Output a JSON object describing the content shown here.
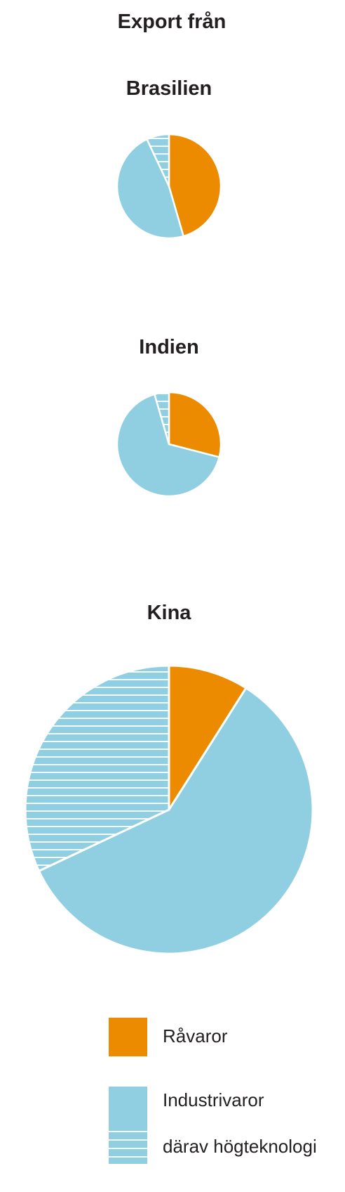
{
  "title": "Export från",
  "colors": {
    "ravaror": "#ec8a00",
    "industri": "#90cfe1",
    "hatch_line": "#ffffff",
    "separator": "#ffffff",
    "text": "#231f20"
  },
  "chart_data": [
    {
      "type": "pie",
      "title": "Brasilien",
      "unit": "percent of exports",
      "slices": [
        {
          "name": "Råvaror",
          "value": 45.5
        },
        {
          "name": "Industrivaror",
          "value": 47.5
        },
        {
          "name": "därav högteknologi",
          "value": 7.0
        }
      ]
    },
    {
      "type": "pie",
      "title": "Indien",
      "unit": "percent of exports",
      "slices": [
        {
          "name": "Råvaror",
          "value": 29.0
        },
        {
          "name": "Industrivaror",
          "value": 66.5
        },
        {
          "name": "därav högteknologi",
          "value": 4.5
        }
      ]
    },
    {
      "type": "pie",
      "title": "Kina",
      "unit": "percent of exports",
      "slices": [
        {
          "name": "Råvaror",
          "value": 9.0
        },
        {
          "name": "Industrivaror",
          "value": 59.0
        },
        {
          "name": "därav högteknologi",
          "value": 32.0
        }
      ]
    }
  ],
  "legend": [
    {
      "label": "Råvaror",
      "key": "ravaror"
    },
    {
      "label": "Industrivaror",
      "key": "industri"
    },
    {
      "label": "därav högteknologi",
      "key": "hogteknologi"
    }
  ]
}
